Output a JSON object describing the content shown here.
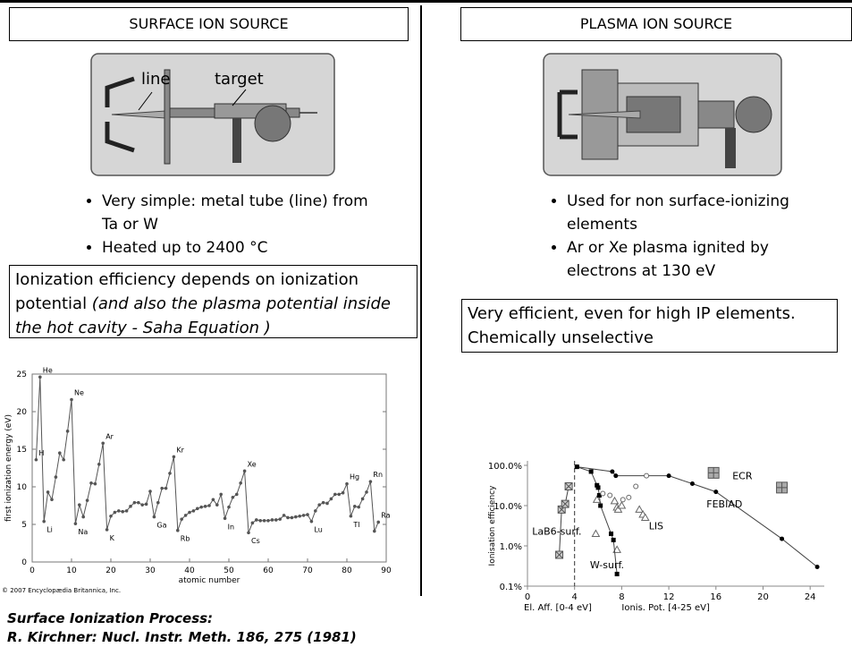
{
  "left": {
    "header": "SURFACE ION SOURCE",
    "diagram": {
      "labels": [
        "line",
        "target"
      ]
    },
    "bullets": [
      "Very simple: metal tube (line) from Ta or W",
      "Heated up to 2400 °C"
    ],
    "box": {
      "text": "Ionization efficiency depends on ionization potential ",
      "italic": "(and also the plasma potential inside the hot cavity - Saha Equation )"
    },
    "chart": {
      "type": "line",
      "y_label": "first ionization energy (eV)",
      "x_label": "atomic number",
      "credit": "© 2007 Encyclopædia Britannica, Inc.",
      "color": "#555555",
      "x": [
        1,
        2,
        3,
        4,
        5,
        6,
        7,
        8,
        9,
        10,
        11,
        12,
        13,
        14,
        15,
        16,
        17,
        18,
        19,
        20,
        21,
        22,
        23,
        24,
        25,
        26,
        27,
        28,
        29,
        30,
        31,
        32,
        33,
        34,
        35,
        36,
        37,
        38,
        39,
        40,
        41,
        42,
        43,
        44,
        45,
        46,
        47,
        48,
        49,
        50,
        51,
        52,
        53,
        54,
        55,
        56,
        57,
        58,
        59,
        60,
        61,
        62,
        63,
        64,
        65,
        66,
        67,
        68,
        69,
        70,
        71,
        72,
        73,
        74,
        75,
        76,
        77,
        78,
        79,
        80,
        81,
        82,
        83,
        84,
        85,
        86,
        87,
        88
      ],
      "values": [
        13.6,
        24.6,
        5.4,
        9.3,
        8.3,
        11.3,
        14.5,
        13.6,
        17.4,
        21.6,
        5.1,
        7.6,
        6.0,
        8.2,
        10.5,
        10.4,
        13.0,
        15.8,
        4.3,
        6.1,
        6.6,
        6.8,
        6.7,
        6.8,
        7.4,
        7.9,
        7.9,
        7.6,
        7.7,
        9.4,
        6.0,
        7.9,
        9.8,
        9.8,
        11.8,
        14.0,
        4.2,
        5.7,
        6.2,
        6.6,
        6.8,
        7.1,
        7.3,
        7.4,
        7.5,
        8.3,
        7.6,
        9.0,
        5.8,
        7.3,
        8.6,
        9.0,
        10.5,
        12.1,
        3.9,
        5.2,
        5.6,
        5.5,
        5.5,
        5.5,
        5.6,
        5.6,
        5.7,
        6.2,
        5.9,
        5.9,
        6.0,
        6.1,
        6.2,
        6.3,
        5.4,
        6.8,
        7.6,
        7.9,
        7.8,
        8.4,
        9.0,
        9.0,
        9.2,
        10.4,
        6.1,
        7.4,
        7.3,
        8.4,
        9.3,
        10.7,
        4.1,
        5.3
      ],
      "annotations": [
        {
          "text": "H",
          "x": 1
        },
        {
          "text": "He",
          "x": 2
        },
        {
          "text": "Li",
          "x": 3
        },
        {
          "text": "Ne",
          "x": 10
        },
        {
          "text": "Na",
          "x": 11
        },
        {
          "text": "Ar",
          "x": 18
        },
        {
          "text": "K",
          "x": 19
        },
        {
          "text": "Ga",
          "x": 31
        },
        {
          "text": "Kr",
          "x": 36
        },
        {
          "text": "Rb",
          "x": 37
        },
        {
          "text": "In",
          "x": 49
        },
        {
          "text": "Xe",
          "x": 54
        },
        {
          "text": "Cs",
          "x": 55
        },
        {
          "text": "Lu",
          "x": 71
        },
        {
          "text": "Hg",
          "x": 80
        },
        {
          "text": "Tl",
          "x": 81
        },
        {
          "text": "Rn",
          "x": 86
        },
        {
          "text": "Ra",
          "x": 88
        }
      ],
      "xlim": [
        0,
        90
      ],
      "ylim": [
        0,
        25
      ],
      "xticks": [
        0,
        10,
        20,
        30,
        40,
        50,
        60,
        70,
        80,
        90
      ],
      "yticks": [
        0,
        5,
        10,
        15,
        20,
        25
      ]
    },
    "citation": [
      "Surface Ionization Process:",
      "R. Kirchner: Nucl. Instr. Meth. 186, 275 (1981)"
    ]
  },
  "right": {
    "header": "PLASMA ION SOURCE",
    "bullets": [
      "Used for non surface-ionizing elements",
      "Ar or Xe plasma ignited by electrons at 130 eV"
    ],
    "box": [
      "Very efficient, even for high IP elements.",
      "Chemically unselective"
    ],
    "chart": {
      "type": "scatter",
      "log_y": true,
      "y_label": "Ionisation efficiency",
      "x_labels": [
        "El. Aff. [0-4 eV]",
        "Ionis. Pot. [4-25 eV]"
      ],
      "divider_x": 4,
      "xlim": [
        0,
        25.2
      ],
      "ylim": [
        0.1,
        100
      ],
      "xticks": [
        0,
        4,
        8,
        12,
        16,
        20,
        24
      ],
      "yticks": [
        {
          "value": 0.1,
          "label": "0.1%"
        },
        {
          "value": 1,
          "label": "1.0%"
        },
        {
          "value": 10,
          "label": "10.0%"
        },
        {
          "value": 100,
          "label": "100.0%"
        }
      ],
      "series": [
        {
          "name": "ECR",
          "marker": "plus-square",
          "color": "#888888",
          "x": [
            15.8,
            21.6
          ],
          "values": [
            65,
            28
          ]
        },
        {
          "name": "FEBIAD",
          "marker": "circle",
          "color": "#000000",
          "line": true,
          "x": [
            4.2,
            7.2,
            7.5,
            12,
            14,
            16,
            21.6,
            24.6
          ],
          "values": [
            92,
            70,
            55,
            55,
            35,
            22,
            1.5,
            0.3
          ]
        },
        {
          "name": "LIS",
          "marker": "triangle",
          "color": "#666666",
          "x": [
            5.8,
            5.9,
            7.4,
            7.6,
            7.6,
            7.7,
            8.0,
            9.5,
            9.8,
            10
          ],
          "values": [
            2,
            14,
            13,
            0.8,
            9,
            8,
            10,
            8,
            6,
            5
          ]
        },
        {
          "name": "W-surf.",
          "marker": "square",
          "color": "#000000",
          "line": true,
          "x": [
            4.2,
            5.4,
            5.9,
            6.0,
            6.1,
            6.2,
            7.1,
            7.3,
            7.6
          ],
          "values": [
            92,
            70,
            32,
            28,
            18,
            10,
            2,
            1.4,
            0.2
          ]
        },
        {
          "name": "LaB6-surf.",
          "marker": "x-square",
          "color": "#555555",
          "line": true,
          "x": [
            2.7,
            2.9,
            3.2,
            3.5
          ],
          "values": [
            0.6,
            8,
            11,
            30
          ]
        },
        {
          "marker": "open-circle",
          "color": "#666666",
          "x": [
            6.4,
            7.0,
            8.1,
            8.6,
            9.2,
            10.1
          ],
          "values": [
            20,
            18,
            14,
            16,
            30,
            55
          ]
        }
      ]
    }
  }
}
